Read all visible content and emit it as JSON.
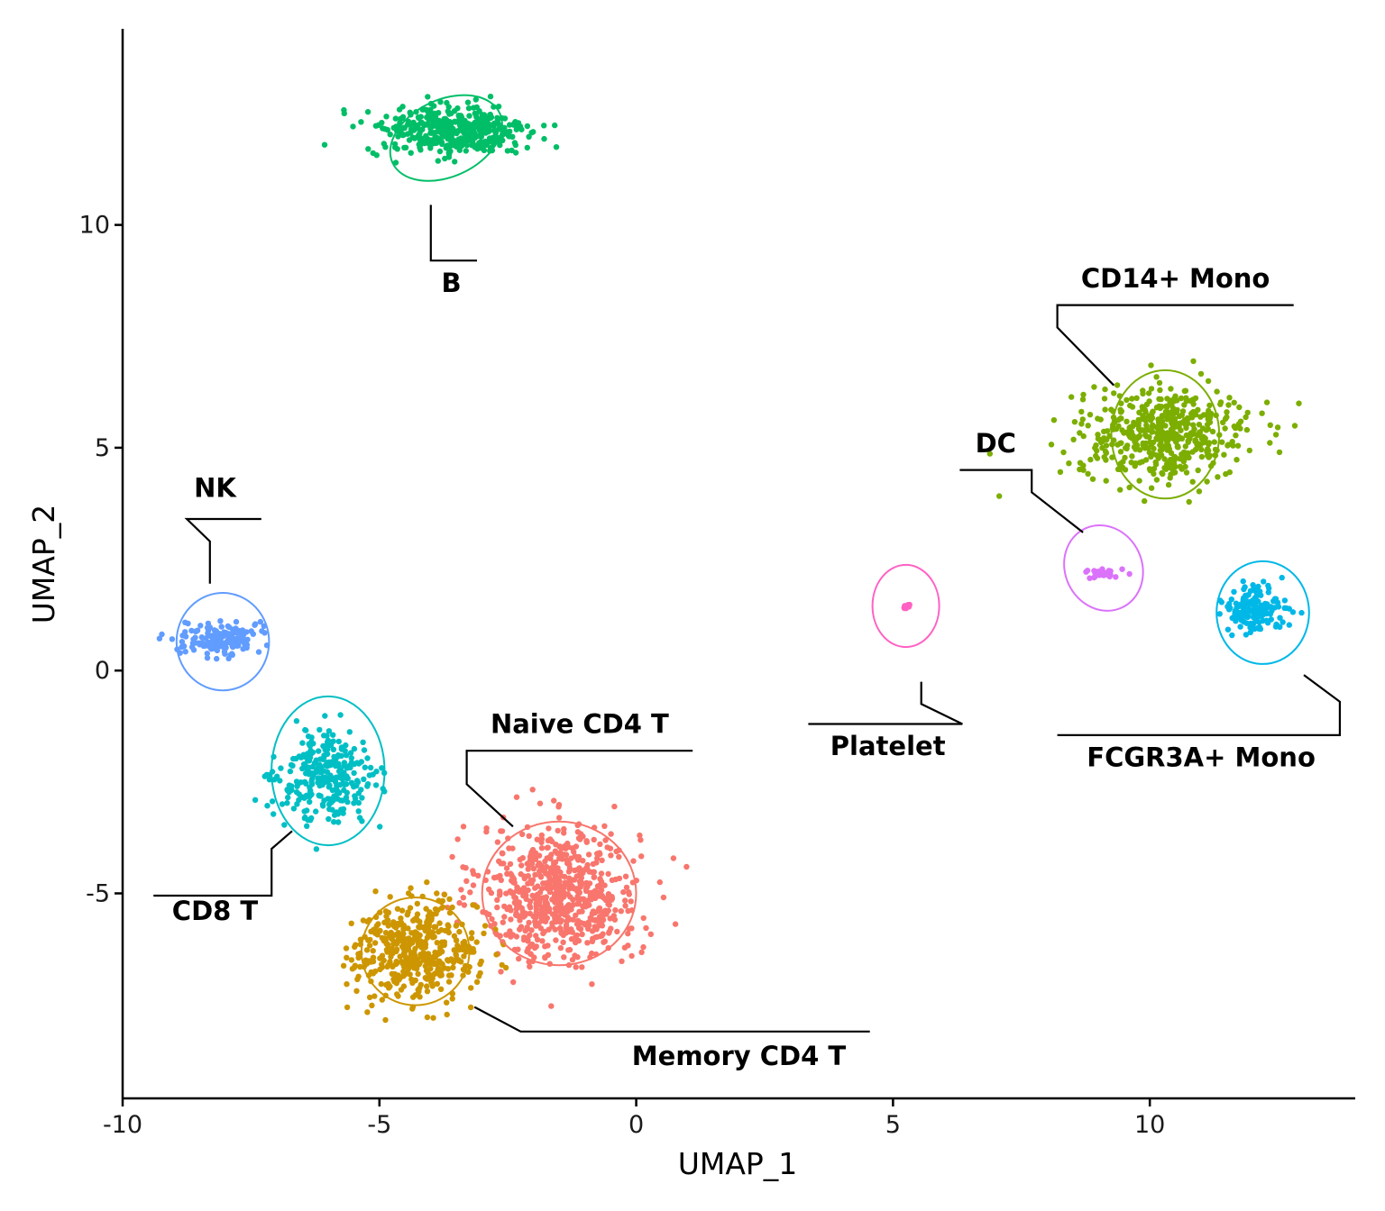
{
  "chart_data": {
    "type": "scatter",
    "title": "",
    "xlabel": "UMAP_1",
    "ylabel": "UMAP_2",
    "xlim": [
      -10,
      14
    ],
    "ylim": [
      -9.6,
      14.4
    ],
    "x_ticks": [
      -10,
      -5,
      0,
      5,
      10
    ],
    "y_ticks": [
      -5,
      0,
      5,
      10
    ],
    "x_tick_labels": [
      "-10",
      "-5",
      "0",
      "5",
      "10"
    ],
    "y_tick_labels": [
      "-5",
      "0",
      "5",
      "10"
    ],
    "grid": false,
    "legend": "none",
    "clusters": [
      {
        "label": "Naive CD4 T",
        "color": "#F8766D",
        "center": [
          -1.5,
          -5.0
        ],
        "spread": [
          1.4,
          1.4
        ],
        "n_points": 700,
        "ellipse": {
          "cx": -1.5,
          "cy": -5.0,
          "rx": 1.5,
          "ry": 1.4,
          "angle": 0
        }
      },
      {
        "label": "Memory CD4 T",
        "color": "#CD9600",
        "center": [
          -4.3,
          -6.3
        ],
        "spread": [
          1.1,
          1.0
        ],
        "n_points": 450,
        "ellipse": {
          "cx": -4.3,
          "cy": -6.3,
          "rx": 1.05,
          "ry": 1.05,
          "angle": 0
        }
      },
      {
        "label": "CD14+ Mono",
        "color": "#7CAE00",
        "center": [
          10.3,
          5.3
        ],
        "spread": [
          1.5,
          0.9
        ],
        "n_points": 500,
        "ellipse": {
          "cx": 10.3,
          "cy": 5.3,
          "rx": 1.05,
          "ry": 1.25,
          "angle": 0
        }
      },
      {
        "label": "B",
        "color": "#00BE67",
        "center": [
          -3.6,
          12.1
        ],
        "spread": [
          1.4,
          0.55
        ],
        "n_points": 400,
        "ellipse": {
          "cx": -3.7,
          "cy": 11.95,
          "rx": 1.15,
          "ry": 0.75,
          "angle": 25
        }
      },
      {
        "label": "CD8 T",
        "color": "#00BFC4",
        "center": [
          -6.0,
          -2.4
        ],
        "spread": [
          0.85,
          0.9
        ],
        "n_points": 300,
        "ellipse": {
          "cx": -6.0,
          "cy": -2.25,
          "rx": 1.1,
          "ry": 1.45,
          "angle": 0
        }
      },
      {
        "label": "FCGR3A+ Mono",
        "color": "#00B8E7",
        "center": [
          12.0,
          1.4
        ],
        "spread": [
          0.55,
          0.45
        ],
        "n_points": 160,
        "ellipse": {
          "cx": 12.2,
          "cy": 1.3,
          "rx": 0.9,
          "ry": 1.0,
          "angle": 0
        }
      },
      {
        "label": "NK",
        "color": "#619CFF",
        "center": [
          -8.1,
          0.7
        ],
        "spread": [
          0.65,
          0.35
        ],
        "n_points": 160,
        "ellipse": {
          "cx": -8.05,
          "cy": 0.65,
          "rx": 0.9,
          "ry": 0.95,
          "angle": 0
        }
      },
      {
        "label": "DC",
        "color": "#DB72FB",
        "center": [
          9.1,
          2.2
        ],
        "spread": [
          0.35,
          0.12
        ],
        "n_points": 30,
        "ellipse": {
          "cx": 9.1,
          "cy": 2.3,
          "rx": 0.75,
          "ry": 0.85,
          "angle": 25
        }
      },
      {
        "label": "Platelet",
        "color": "#FF61C3",
        "center": [
          5.25,
          1.45
        ],
        "spread": [
          0.06,
          0.05
        ],
        "n_points": 10,
        "ellipse": {
          "cx": 5.25,
          "cy": 1.45,
          "rx": 0.65,
          "ry": 0.8,
          "angle": 0
        }
      }
    ],
    "label_callouts": [
      {
        "label": "B",
        "text_at": [
          -3.6,
          8.5
        ],
        "leader": [
          [
            -4.0,
            10.45
          ],
          [
            -4.0,
            9.2
          ],
          [
            -3.1,
            9.2
          ]
        ]
      },
      {
        "label": "CD14+ Mono",
        "text_at": [
          10.5,
          8.6
        ],
        "leader": [
          [
            9.3,
            6.4
          ],
          [
            8.2,
            7.7
          ],
          [
            8.2,
            8.2
          ],
          [
            12.8,
            8.2
          ]
        ]
      },
      {
        "label": "DC",
        "text_at": [
          7.0,
          4.9
        ],
        "leader": [
          [
            8.7,
            3.1
          ],
          [
            7.7,
            4.0
          ],
          [
            7.7,
            4.5
          ],
          [
            6.3,
            4.5
          ]
        ]
      },
      {
        "label": "NK",
        "text_at": [
          -8.2,
          3.9
        ],
        "leader": [
          [
            -8.3,
            1.95
          ],
          [
            -8.3,
            2.9
          ],
          [
            -8.75,
            3.4
          ],
          [
            -7.3,
            3.4
          ]
        ]
      },
      {
        "label": "Naive CD4 T",
        "text_at": [
          -1.1,
          -1.4
        ],
        "leader": [
          [
            -2.4,
            -3.5
          ],
          [
            -3.3,
            -2.55
          ],
          [
            -3.3,
            -1.8
          ],
          [
            1.1,
            -1.8
          ]
        ]
      },
      {
        "label": "Platelet",
        "text_at": [
          4.9,
          -1.9
        ],
        "leader": [
          [
            5.55,
            -0.25
          ],
          [
            5.55,
            -0.75
          ],
          [
            6.35,
            -1.2
          ],
          [
            3.35,
            -1.2
          ]
        ]
      },
      {
        "label": "FCGR3A+ Mono",
        "text_at": [
          11.0,
          -2.15
        ],
        "leader": [
          [
            13.0,
            -0.1
          ],
          [
            13.7,
            -0.7
          ],
          [
            13.7,
            -1.45
          ],
          [
            8.2,
            -1.45
          ]
        ]
      },
      {
        "label": "CD8 T",
        "text_at": [
          -8.2,
          -5.6
        ],
        "leader": [
          [
            -6.7,
            -3.6
          ],
          [
            -7.1,
            -4.0
          ],
          [
            -7.1,
            -5.05
          ],
          [
            -9.4,
            -5.05
          ]
        ]
      },
      {
        "label": "Memory CD4 T",
        "text_at": [
          2.0,
          -8.85
        ],
        "leader": [
          [
            -3.15,
            -7.55
          ],
          [
            -2.25,
            -8.1
          ],
          [
            4.55,
            -8.1
          ]
        ]
      }
    ]
  }
}
